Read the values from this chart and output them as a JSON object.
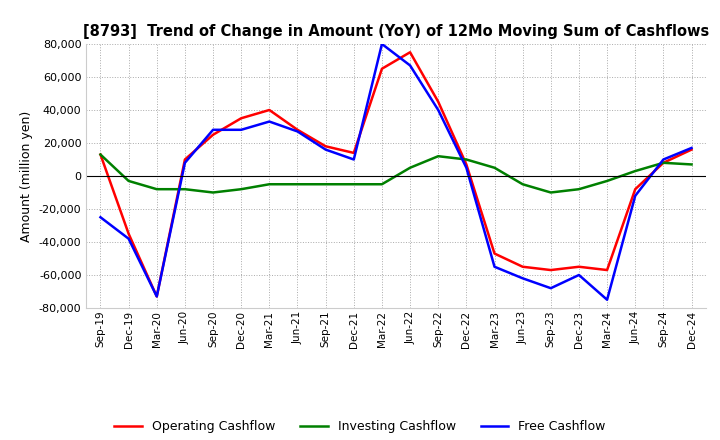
{
  "title": "[8793]  Trend of Change in Amount (YoY) of 12Mo Moving Sum of Cashflows",
  "ylabel": "Amount (million yen)",
  "xlabels": [
    "Sep-19",
    "Dec-19",
    "Mar-20",
    "Jun-20",
    "Sep-20",
    "Dec-20",
    "Mar-21",
    "Jun-21",
    "Sep-21",
    "Dec-21",
    "Mar-22",
    "Jun-22",
    "Sep-22",
    "Dec-22",
    "Mar-23",
    "Jun-23",
    "Sep-23",
    "Dec-23",
    "Mar-24",
    "Jun-24",
    "Sep-24",
    "Dec-24"
  ],
  "ylim": [
    -80000,
    80000
  ],
  "yticks": [
    -80000,
    -60000,
    -40000,
    -20000,
    0,
    20000,
    40000,
    60000,
    80000
  ],
  "operating": [
    13000,
    -35000,
    -73000,
    10000,
    25000,
    35000,
    40000,
    28000,
    18000,
    14000,
    65000,
    75000,
    45000,
    7000,
    -47000,
    -55000,
    -57000,
    -55000,
    -57000,
    -8000,
    8000,
    16000
  ],
  "investing": [
    13000,
    -3000,
    -8000,
    -8000,
    -10000,
    -8000,
    -5000,
    -5000,
    -5000,
    -5000,
    -5000,
    5000,
    12000,
    10000,
    5000,
    -5000,
    -10000,
    -8000,
    -3000,
    3000,
    8000,
    7000
  ],
  "free": [
    -25000,
    -38000,
    -73000,
    8000,
    28000,
    28000,
    33000,
    27000,
    16000,
    10000,
    80000,
    67000,
    40000,
    5000,
    -55000,
    -62000,
    -68000,
    -60000,
    -75000,
    -12000,
    10000,
    17000
  ],
  "operating_color": "#ff0000",
  "investing_color": "#008000",
  "free_color": "#0000ff",
  "background_color": "#ffffff",
  "grid_color": "#aaaaaa"
}
